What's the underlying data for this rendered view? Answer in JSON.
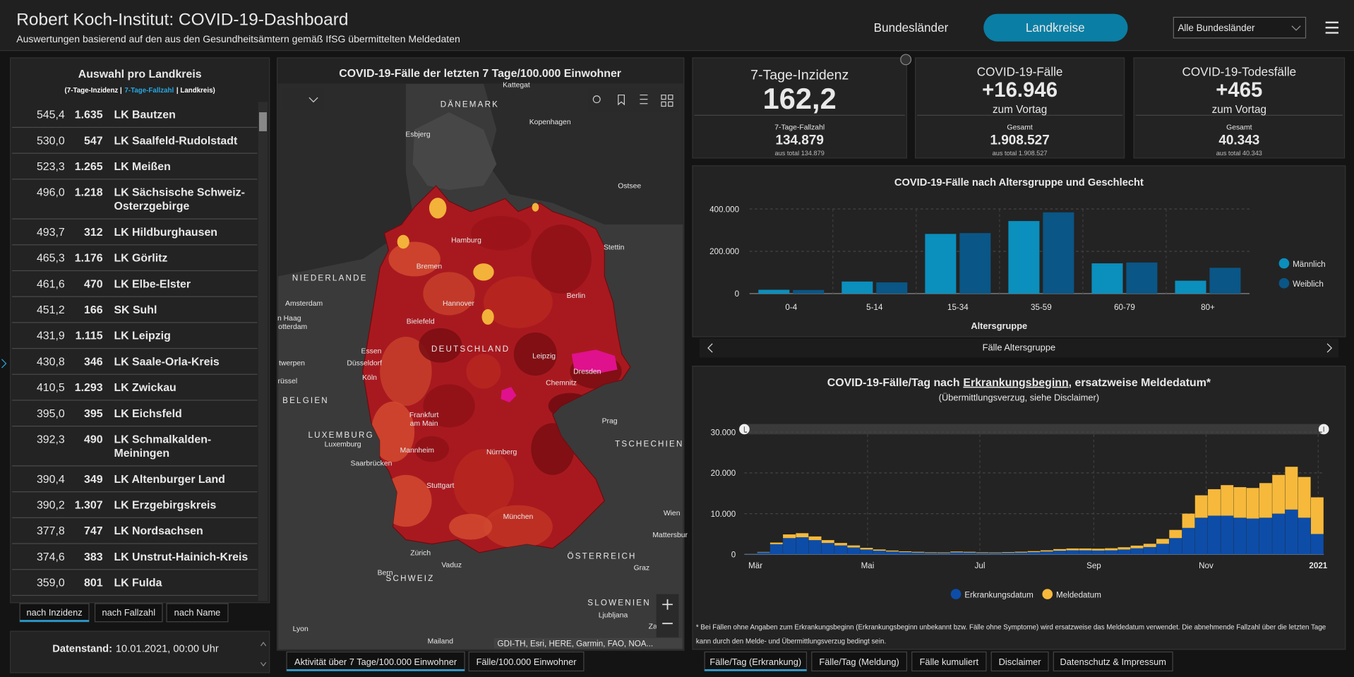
{
  "header": {
    "title": "Robert Koch-Institut: COVID-19-Dashboard",
    "subtitle": "Auswertungen basierend auf den aus den Gesundheitsämtern gemäß IfSG übermittelten Meldedaten",
    "nav": [
      "Bundesländer",
      "Landkreise"
    ],
    "dropdown": "Alle Bundesländer"
  },
  "list": {
    "title": "Auswahl pro Landkreis",
    "subtitle": [
      "(7-Tage-Inzidenz |",
      "7-Tage-Fallzahl",
      "| Landkreis)"
    ],
    "rows": [
      [
        "545,4",
        "1.635",
        [
          "LK Bautzen"
        ]
      ],
      [
        "530,0",
        "547",
        [
          "LK Saalfeld-Rudolstadt"
        ]
      ],
      [
        "523,3",
        "1.265",
        [
          "LK Meißen"
        ]
      ],
      [
        "496,0",
        "1.218",
        [
          "LK Sächsische Schweiz-",
          "Osterzgebirge"
        ]
      ],
      [
        "493,7",
        "312",
        [
          "LK Hildburghausen"
        ]
      ],
      [
        "465,3",
        "1.176",
        [
          "LK Görlitz"
        ]
      ],
      [
        "461,6",
        "470",
        [
          "LK Elbe-Elster"
        ]
      ],
      [
        "451,2",
        "166",
        [
          "SK Suhl"
        ]
      ],
      [
        "431,9",
        "1.115",
        [
          "LK Leipzig"
        ]
      ],
      [
        "430,8",
        "346",
        [
          "LK Saale-Orla-Kreis"
        ]
      ],
      [
        "410,5",
        "1.293",
        [
          "LK Zwickau"
        ]
      ],
      [
        "395,0",
        "395",
        [
          "LK Eichsfeld"
        ]
      ],
      [
        "392,3",
        "490",
        [
          "LK Schmalkalden-",
          "Meiningen"
        ]
      ],
      [
        "390,4",
        "349",
        [
          "LK Altenburger Land"
        ]
      ],
      [
        "390,2",
        "1.307",
        [
          "LK Erzgebirgskreis"
        ]
      ],
      [
        "377,8",
        "747",
        [
          "LK Nordsachsen"
        ]
      ],
      [
        "374,6",
        "383",
        [
          "LK Unstrut-Hainich-Kreis"
        ]
      ],
      [
        "359,0",
        "801",
        [
          "LK Fulda"
        ]
      ]
    ],
    "sort_tabs": [
      "nach Inzidenz",
      "nach Fallzahl",
      "nach Name"
    ],
    "datenstand_label": "Datenstand:",
    "datenstand": "10.01.2021, 00:00 Uhr"
  },
  "map": {
    "title": "COVID-19-Fälle der letzten 7 Tage/100.000 Einwohner",
    "attribution": "GDI-TH, Esri, HERE, Garmin, FAO, NOA...",
    "labels": [
      "Kattegat",
      "DÄNEMARK",
      "Kopenhagen",
      "Esbjerg",
      "Ostsee",
      "Hamburg",
      "Stettin",
      "NIEDERLANDE",
      "Bremen",
      "Amsterdam",
      "Hannover",
      "Berlin",
      "n Haag",
      "otterdam",
      "Bielefeld",
      "DEUTSCHLAND",
      "Essen",
      "Leipzig",
      "Düsseldorf",
      "Dresden",
      "twerpen",
      "Köln",
      "Chemnitz",
      "rüssel",
      "BELGIEN",
      "Frankfurt",
      "am Main",
      "Prag",
      "LUXEMBURG",
      "Luxemburg",
      "Mannheim",
      "Nürnberg",
      "TSCHECHIEN",
      "Saarbrücken",
      "Stuttgart",
      "Wien",
      "München",
      "Mattersbur",
      "Zürich",
      "Vaduz",
      "ÖSTERREICH",
      "Graz",
      "Bern",
      "SCHWEIZ",
      "SLOWENIEN",
      "Ljubljana",
      "Lyon",
      "Mailand",
      "Za"
    ],
    "tabs": [
      "Aktivität über 7 Tage/100.000 Einwohner",
      "Fälle/100.000 Einwohner"
    ]
  },
  "kpis": [
    {
      "title": "7-Tage-Inzidenz",
      "value": "162,2",
      "sub_title": "7-Tage-Fallzahl",
      "sub_value": "134.879",
      "sub_note": "aus total 134.879"
    },
    {
      "title": "COVID-19-Fälle",
      "value": "+16.946",
      "delta_label": "zum Vortag",
      "sub_title": "Gesamt",
      "sub_value": "1.908.527",
      "sub_note": "aus total 1.908.527"
    },
    {
      "title": "COVID-19-Todesfälle",
      "value": "+465",
      "delta_label": "zum Vortag",
      "sub_title": "Gesamt",
      "sub_value": "40.343",
      "sub_note": "aus total 40.343"
    }
  ],
  "chart_data": [
    {
      "type": "bar",
      "title": "COVID-19-Fälle nach Altersgruppe und Geschlecht",
      "categories": [
        "0-4",
        "5-14",
        "15-34",
        "35-59",
        "60-79",
        "80+"
      ],
      "series": [
        {
          "name": "Männlich",
          "color": "#0b8fbd",
          "values": [
            18000,
            57000,
            282000,
            343000,
            143000,
            61000
          ]
        },
        {
          "name": "Weiblich",
          "color": "#0a5686",
          "values": [
            17000,
            53000,
            286000,
            384000,
            147000,
            122000
          ]
        }
      ],
      "ylim": [
        0,
        400000
      ],
      "yticks": [
        0,
        {
          "value": 200000,
          "label": "200.000"
        },
        {
          "value": 400000,
          "label": "400.000"
        }
      ],
      "xlabel": "Altersgruppe",
      "footer": "Fälle Altersgruppe",
      "grid": true,
      "legend": "right"
    },
    {
      "type": "bar",
      "stacked": true,
      "title": [
        "COVID-19-Fälle/Tag nach",
        "Erkrankungsbeginn",
        ", ersatzweise Meldedatum*"
      ],
      "subtitle": "(Übermittlungsverzug, siehe Disclaimer)",
      "series": [
        {
          "name": "Erkrankungsdatum",
          "color": "#0d4da8",
          "values": [
            100,
            500,
            2500,
            4000,
            4200,
            3500,
            2800,
            2200,
            1700,
            1200,
            900,
            700,
            550,
            450,
            350,
            330,
            500,
            450,
            350,
            330,
            380,
            450,
            550,
            700,
            900,
            1000,
            1000,
            950,
            1000,
            1200,
            1500,
            1800,
            2600,
            4000,
            6500,
            9000,
            9500,
            9500,
            9000,
            8800,
            9000,
            10000,
            11000,
            9000,
            5000
          ]
        },
        {
          "name": "Meldedatum",
          "color": "#f6b93b",
          "values": [
            20,
            100,
            400,
            900,
            1000,
            900,
            700,
            600,
            500,
            400,
            300,
            250,
            200,
            180,
            150,
            150,
            200,
            180,
            150,
            140,
            160,
            200,
            250,
            300,
            400,
            450,
            450,
            450,
            500,
            550,
            650,
            800,
            1200,
            2000,
            3500,
            5500,
            6500,
            7500,
            7500,
            7500,
            8500,
            9500,
            10500,
            10000,
            9000
          ]
        }
      ],
      "xlim": [
        0,
        45
      ],
      "xticks": [
        {
          "value": 0.86,
          "label": "Mär"
        },
        {
          "value": 9.57,
          "label": "Mai"
        },
        {
          "value": 18.29,
          "label": "Jul"
        },
        {
          "value": 27.14,
          "label": "Sep"
        },
        {
          "value": 35.86,
          "label": "Nov"
        },
        {
          "value": 44.57,
          "label": "2021"
        }
      ],
      "ylim": [
        0,
        32000
      ],
      "yticks": [
        0,
        {
          "value": 10000,
          "label": "10.000"
        },
        {
          "value": 20000,
          "label": "20.000"
        },
        {
          "value": 30000,
          "label": "30.000"
        }
      ],
      "grid": true,
      "legend": "bottom",
      "footnote": [
        "* Bei Fällen ohne Angaben zum Erkrankungsbeginn (Erkrankungsbeginn unbekannt bzw. Fälle ohne Symptome) wird ersatzweise das Meldedatum verwendet. Die abnehmende Fallzahl über die letzten Tage",
        "kann durch den Melde- und Übermittlungsverzug bedingt sein."
      ],
      "tabs": [
        "Fälle/Tag (Erkrankung)",
        "Fälle/Tag (Meldung)",
        "Fälle kumuliert",
        "Disclaimer",
        "Datenschutz & Impressum"
      ]
    }
  ]
}
